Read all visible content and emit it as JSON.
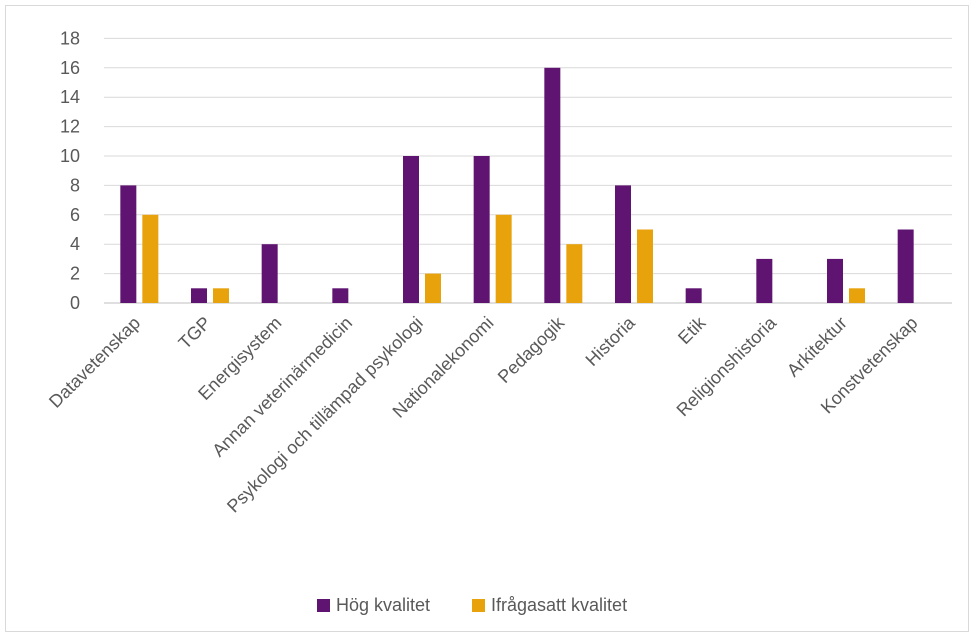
{
  "chart_data": {
    "type": "bar",
    "categories": [
      "Datavetenskap",
      "TGP",
      "Energisystem",
      "Annan veterinärmedicin",
      "Psykologi och tillämpad psykologi",
      "Nationalekonomi",
      "Pedagogik",
      "Historia",
      "Etik",
      "Religionshistoria",
      "Arkitektur",
      "Konstvetenskap"
    ],
    "series": [
      {
        "name": "Hög kvalitet",
        "color": "#5E1470",
        "values": [
          8,
          1,
          4,
          1,
          10,
          10,
          16,
          8,
          1,
          3,
          3,
          5
        ]
      },
      {
        "name": "Ifrågasatt kvalitet",
        "color": "#E8A20C",
        "values": [
          6,
          1,
          0,
          0,
          2,
          6,
          4,
          5,
          0,
          0,
          1,
          0
        ]
      }
    ],
    "yticks": [
      "0",
      "2",
      "4",
      "6",
      "8",
      "10",
      "12",
      "14",
      "16",
      "18"
    ],
    "ylim": [
      0,
      18
    ],
    "title": "",
    "xlabel": "",
    "ylabel": "",
    "grid": true,
    "legend_position": "bottom"
  }
}
